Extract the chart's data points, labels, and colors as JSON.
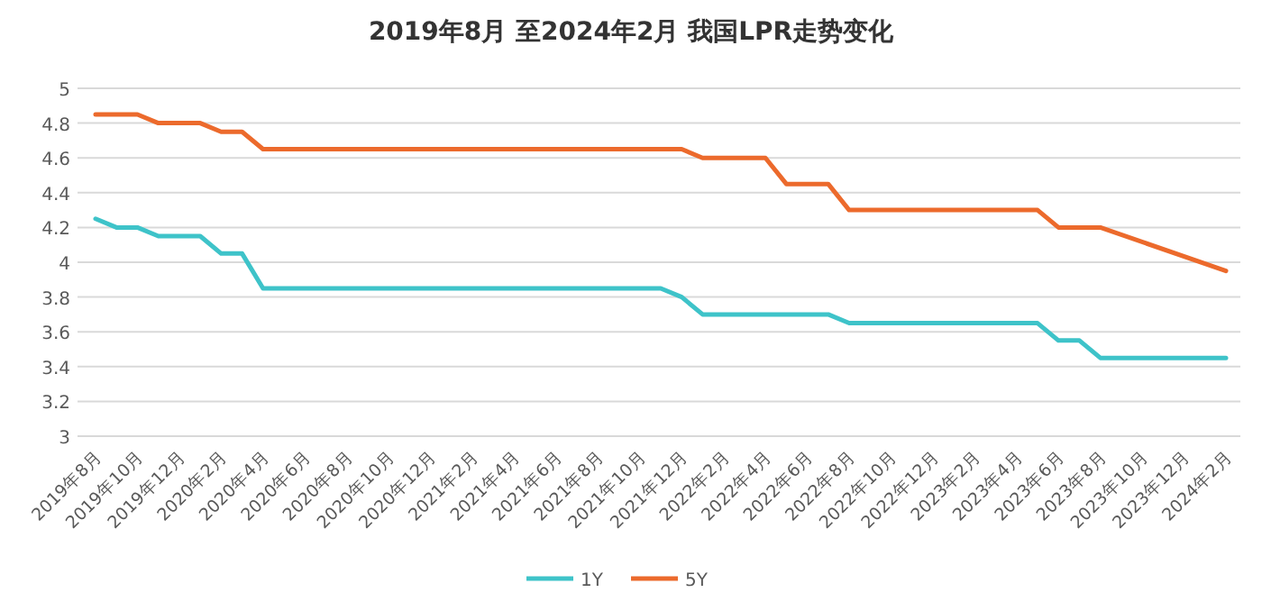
{
  "chart_data": {
    "type": "line",
    "title": "2019年8月 至2024年2月 我国LPR走势变化",
    "categories": [
      "2019年8月",
      null,
      "2019年10月",
      null,
      "2019年12月",
      null,
      "2020年2月",
      null,
      "2020年4月",
      null,
      "2020年6月",
      null,
      "2020年8月",
      null,
      "2020年10月",
      null,
      "2020年12月",
      null,
      "2021年2月",
      null,
      "2021年4月",
      null,
      "2021年6月",
      null,
      "2021年8月",
      null,
      "2021年10月",
      null,
      "2021年12月",
      null,
      "2022年2月",
      null,
      "2022年4月",
      null,
      "2022年6月",
      null,
      "2022年8月",
      null,
      "2022年10月",
      null,
      "2022年12月",
      null,
      "2023年2月",
      null,
      "2023年4月",
      null,
      "2023年6月",
      null,
      "2023年8月",
      null,
      "2023年10月",
      null,
      "2023年12月",
      null,
      "2024年2月"
    ],
    "series": [
      {
        "name": "1Y",
        "color": "#3ec3c9",
        "values": [
          4.25,
          4.2,
          4.2,
          4.15,
          4.15,
          4.15,
          4.05,
          4.05,
          3.85,
          3.85,
          3.85,
          3.85,
          3.85,
          3.85,
          3.85,
          3.85,
          3.85,
          3.85,
          3.85,
          3.85,
          3.85,
          3.85,
          3.85,
          3.85,
          3.85,
          3.85,
          3.85,
          3.85,
          3.8,
          3.7,
          3.7,
          3.7,
          3.7,
          3.7,
          3.7,
          3.7,
          3.65,
          3.65,
          3.65,
          3.65,
          3.65,
          3.65,
          3.65,
          3.65,
          3.65,
          3.65,
          3.55,
          3.55,
          3.45,
          null,
          null,
          null,
          null,
          null,
          3.45
        ]
      },
      {
        "name": "5Y",
        "color": "#ec6a2c",
        "values": [
          4.85,
          4.85,
          4.85,
          4.8,
          4.8,
          4.8,
          4.75,
          4.75,
          4.65,
          4.65,
          4.65,
          4.65,
          4.65,
          4.65,
          4.65,
          4.65,
          4.65,
          4.65,
          4.65,
          4.65,
          4.65,
          4.65,
          4.65,
          4.65,
          4.65,
          4.65,
          4.65,
          4.65,
          4.65,
          4.6,
          4.6,
          4.6,
          4.6,
          4.45,
          4.45,
          4.45,
          4.3,
          4.3,
          4.3,
          4.3,
          4.3,
          4.3,
          4.3,
          4.3,
          4.3,
          4.3,
          4.2,
          4.2,
          4.2,
          null,
          null,
          null,
          null,
          null,
          3.95
        ]
      }
    ],
    "ylim": [
      3,
      5
    ],
    "yticks": [
      3,
      3.2,
      3.4,
      3.6,
      3.8,
      4,
      4.2,
      4.4,
      4.6,
      4.8,
      5
    ],
    "grid": "y",
    "legend": "bottom",
    "line_style": "solid",
    "marker": "none"
  }
}
